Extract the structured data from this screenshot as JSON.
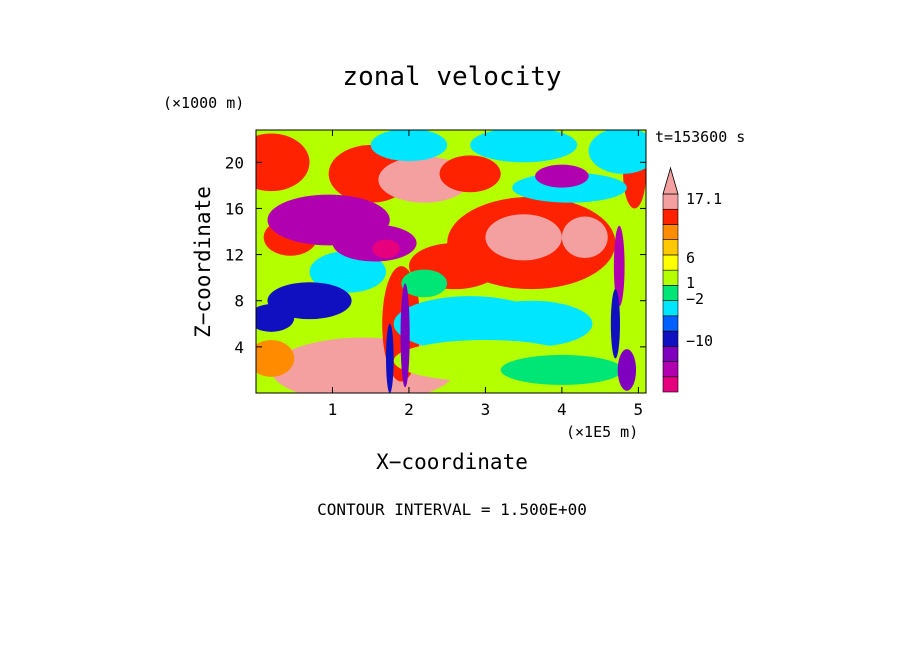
{
  "chart_data": {
    "type": "heatmap",
    "title": "zonal velocity",
    "xlabel": "X−coordinate",
    "ylabel": "Z−coordinate",
    "x_unit": "(×1E5 m)",
    "y_unit": "(×1000 m)",
    "time_label": "t=153600 s",
    "footer": "CONTOUR INTERVAL = 1.500E+00",
    "xlim": [
      0,
      5.1
    ],
    "ylim": [
      0,
      22.8
    ],
    "x_ticks": [
      "1",
      "2",
      "3",
      "4",
      "5"
    ],
    "y_ticks": [
      "4",
      "8",
      "12",
      "16",
      "20"
    ],
    "colorbar": {
      "labels": [
        "17.1",
        "6",
        "1",
        "−2",
        "−10"
      ],
      "colors": [
        "#e6007e",
        "#b000b0",
        "#7f00bf",
        "#1010c0",
        "#0060ff",
        "#00e6ff",
        "#00e676",
        "#b4ff00",
        "#ffff00",
        "#ffc800",
        "#ff8c00",
        "#ff2200",
        "#f4a0a0"
      ]
    },
    "features": [
      {
        "x": 1.4,
        "z": 2.0,
        "rx": 1.2,
        "rz": 2.8,
        "value": 6
      },
      {
        "x": 0.9,
        "z": 1.0,
        "rx": 0.4,
        "rz": 0.9,
        "value": 9
      },
      {
        "x": 0.2,
        "z": 20.0,
        "rx": 0.5,
        "rz": 2.5,
        "value": 4
      },
      {
        "x": 0.45,
        "z": 13.5,
        "rx": 0.35,
        "rz": 1.6,
        "value": 4
      },
      {
        "x": 1.5,
        "z": 19.0,
        "rx": 0.55,
        "rz": 2.5,
        "value": 4
      },
      {
        "x": 2.2,
        "z": 18.5,
        "rx": 0.6,
        "rz": 2.0,
        "value": 6
      },
      {
        "x": 2.8,
        "z": 19.0,
        "rx": 0.4,
        "rz": 1.6,
        "value": 4
      },
      {
        "x": 3.6,
        "z": 13.0,
        "rx": 1.1,
        "rz": 4.0,
        "value": 4
      },
      {
        "x": 3.5,
        "z": 13.5,
        "rx": 0.5,
        "rz": 2.0,
        "value": 6
      },
      {
        "x": 4.3,
        "z": 13.5,
        "rx": 0.3,
        "rz": 1.8,
        "value": 6
      },
      {
        "x": 1.9,
        "z": 6.0,
        "rx": 0.25,
        "rz": 5.0,
        "value": 4
      },
      {
        "x": 2.6,
        "z": 11.0,
        "rx": 0.6,
        "rz": 2.0,
        "value": 4
      },
      {
        "x": 4.95,
        "z": 19.0,
        "rx": 0.15,
        "rz": 3.0,
        "value": 4
      },
      {
        "x": 0.2,
        "z": 3.0,
        "rx": 0.3,
        "rz": 1.6,
        "value": 3
      },
      {
        "x": 2.8,
        "z": 6.0,
        "rx": 1.0,
        "rz": 2.4,
        "value": -4
      },
      {
        "x": 3.6,
        "z": 6.0,
        "rx": 0.8,
        "rz": 2.0,
        "value": -4
      },
      {
        "x": 3.0,
        "z": 2.8,
        "rx": 1.2,
        "rz": 1.8,
        "value": -2
      },
      {
        "x": 4.0,
        "z": 2.0,
        "rx": 0.8,
        "rz": 1.3,
        "value": -3
      },
      {
        "x": 2.0,
        "z": 21.5,
        "rx": 0.5,
        "rz": 1.4,
        "value": -4
      },
      {
        "x": 3.5,
        "z": 21.5,
        "rx": 0.7,
        "rz": 1.5,
        "value": -4
      },
      {
        "x": 4.8,
        "z": 21.0,
        "rx": 0.45,
        "rz": 2.0,
        "value": -4
      },
      {
        "x": 4.1,
        "z": 17.8,
        "rx": 0.75,
        "rz": 1.3,
        "value": -4
      },
      {
        "x": 1.2,
        "z": 10.5,
        "rx": 0.5,
        "rz": 1.8,
        "value": -4
      },
      {
        "x": 0.7,
        "z": 8.0,
        "rx": 0.55,
        "rz": 1.6,
        "value": -7
      },
      {
        "x": 0.2,
        "z": 6.5,
        "rx": 0.3,
        "rz": 1.2,
        "value": -7
      },
      {
        "x": 2.2,
        "z": 9.5,
        "rx": 0.3,
        "rz": 1.2,
        "value": -3
      },
      {
        "x": 0.95,
        "z": 15.0,
        "rx": 0.8,
        "rz": 2.2,
        "value": -10
      },
      {
        "x": 1.55,
        "z": 13.0,
        "rx": 0.55,
        "rz": 1.6,
        "value": -10
      },
      {
        "x": 1.7,
        "z": 12.5,
        "rx": 0.18,
        "rz": 0.8,
        "value": -13
      },
      {
        "x": 4.0,
        "z": 18.8,
        "rx": 0.35,
        "rz": 1.0,
        "value": -10
      },
      {
        "x": 1.95,
        "z": 5.0,
        "rx": 0.06,
        "rz": 4.5,
        "value": -9
      },
      {
        "x": 1.75,
        "z": 3.0,
        "rx": 0.05,
        "rz": 3.0,
        "value": -8
      },
      {
        "x": 4.75,
        "z": 11.0,
        "rx": 0.07,
        "rz": 3.5,
        "value": -10
      },
      {
        "x": 4.85,
        "z": 2.0,
        "rx": 0.12,
        "rz": 1.8,
        "value": -9
      },
      {
        "x": 4.7,
        "z": 6.0,
        "rx": 0.06,
        "rz": 3.0,
        "value": -7
      }
    ]
  }
}
